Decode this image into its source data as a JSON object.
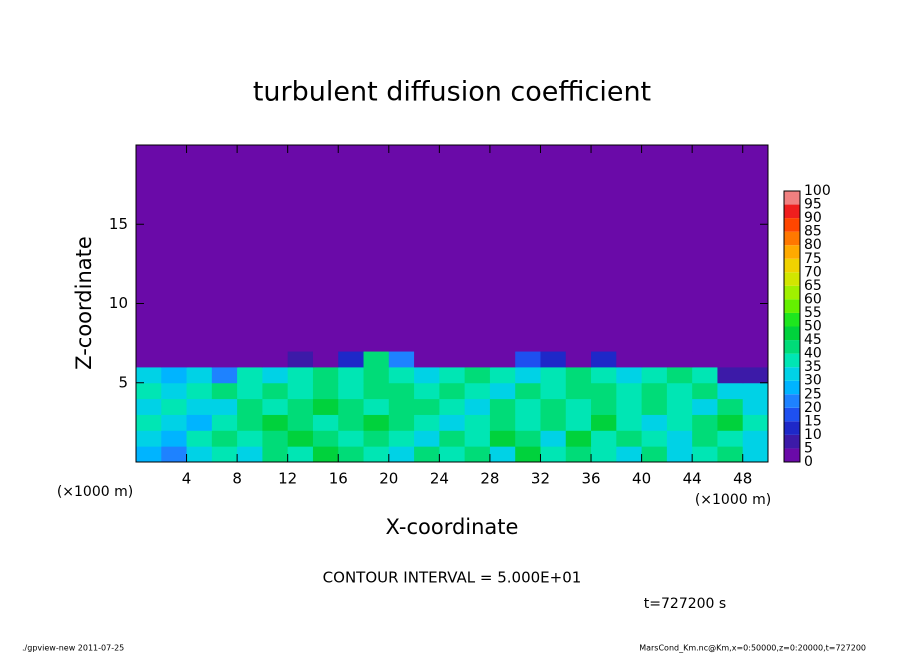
{
  "chart_data": {
    "type": "heatmap",
    "title": "turbulent diffusion coefficient",
    "x_label": "X-coordinate",
    "y_label": "Z-coordinate",
    "x_unit_label": "(×1000 m)",
    "x_unit_label_right": "(×1000 m)",
    "xlim": [
      0,
      50
    ],
    "ylim": [
      0,
      20
    ],
    "xticks": [
      4,
      8,
      12,
      16,
      20,
      24,
      28,
      32,
      36,
      40,
      44,
      48
    ],
    "yticks": [
      5,
      10,
      15
    ],
    "x_bins": [
      0,
      2,
      4,
      6,
      8,
      10,
      12,
      14,
      16,
      18,
      20,
      22,
      24,
      26,
      28,
      30,
      32,
      34,
      36,
      38,
      40,
      42,
      44,
      46,
      48,
      50
    ],
    "y_bins": [
      0,
      1,
      2,
      3,
      4,
      5,
      6,
      7,
      20
    ],
    "values": [
      [
        25,
        20,
        30,
        35,
        30,
        40,
        35,
        45,
        40,
        35,
        30,
        40,
        35,
        40,
        30,
        45,
        35,
        40,
        35,
        30,
        40,
        30,
        35,
        40,
        30
      ],
      [
        30,
        25,
        35,
        40,
        35,
        40,
        45,
        40,
        35,
        40,
        35,
        30,
        40,
        35,
        45,
        40,
        30,
        45,
        35,
        40,
        35,
        30,
        40,
        35,
        30
      ],
      [
        35,
        30,
        25,
        35,
        40,
        45,
        40,
        35,
        40,
        45,
        40,
        35,
        30,
        35,
        40,
        35,
        40,
        35,
        45,
        35,
        30,
        35,
        40,
        45,
        35
      ],
      [
        30,
        35,
        30,
        30,
        40,
        35,
        40,
        45,
        40,
        35,
        40,
        40,
        35,
        30,
        40,
        35,
        40,
        35,
        40,
        35,
        40,
        35,
        30,
        40,
        30
      ],
      [
        35,
        30,
        35,
        40,
        35,
        40,
        35,
        40,
        35,
        40,
        40,
        35,
        40,
        35,
        30,
        40,
        35,
        40,
        40,
        35,
        40,
        35,
        40,
        30,
        30
      ],
      [
        30,
        25,
        30,
        20,
        35,
        30,
        35,
        40,
        35,
        40,
        35,
        30,
        35,
        40,
        35,
        30,
        35,
        40,
        35,
        30,
        35,
        40,
        35,
        5,
        5
      ],
      [
        0,
        0,
        0,
        0,
        0,
        0,
        5,
        0,
        10,
        40,
        20,
        0,
        0,
        0,
        0,
        15,
        10,
        0,
        10,
        0,
        0,
        0,
        0,
        0,
        0
      ],
      [
        0,
        0,
        0,
        0,
        0,
        0,
        0,
        0,
        0,
        0,
        0,
        0,
        0,
        0,
        0,
        0,
        0,
        0,
        0,
        0,
        0,
        0,
        0,
        0,
        0
      ]
    ],
    "colorbar": {
      "levels": [
        0,
        5,
        10,
        15,
        20,
        25,
        30,
        35,
        40,
        45,
        50,
        55,
        60,
        65,
        70,
        75,
        80,
        85,
        90,
        95,
        100
      ],
      "colors": [
        "#6a0aa8",
        "#3c1aa8",
        "#1e28c8",
        "#1e50f0",
        "#1e82ff",
        "#00b4ff",
        "#00d2e6",
        "#00e6b4",
        "#00dc78",
        "#00d23c",
        "#1ee61e",
        "#64f000",
        "#a0f000",
        "#d2e600",
        "#f0d200",
        "#ffaa00",
        "#ff7800",
        "#ff4600",
        "#f01e1e",
        "#f08080"
      ]
    },
    "contour_interval": "CONTOUR INTERVAL = 5.000E+01",
    "time_label": "t=727200 s",
    "footer_left": "./gpview-new  2011-07-25",
    "footer_right": "MarsCond_Km.nc@Km,x=0:50000,z=0:20000,t=727200"
  }
}
